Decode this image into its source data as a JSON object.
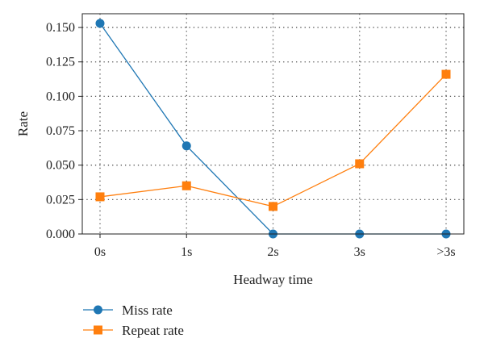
{
  "chart_data": {
    "type": "line",
    "xlabel": "Headway time",
    "ylabel": "Rate",
    "categories": [
      "0s",
      "1s",
      "2s",
      "3s",
      ">3s"
    ],
    "ylim": [
      0,
      0.16
    ],
    "yticks": [
      "0.000",
      "0.025",
      "0.050",
      "0.075",
      "0.100",
      "0.125",
      "0.150"
    ],
    "grid": true,
    "legend_position": "below",
    "series": [
      {
        "name": "Miss rate",
        "values": [
          0.153,
          0.064,
          0.0,
          0.0,
          0.0
        ],
        "color": "#1f77b4",
        "marker": "circle"
      },
      {
        "name": "Repeat rate",
        "values": [
          0.027,
          0.035,
          0.02,
          0.051,
          0.116
        ],
        "color": "#ff7f0e",
        "marker": "square"
      }
    ]
  }
}
